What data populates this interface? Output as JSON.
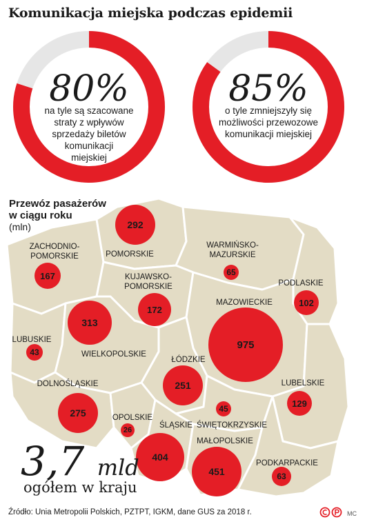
{
  "title": "Komunikacja miejska podczas epidemii",
  "accent_color": "#e41e26",
  "stats": [
    {
      "value": "80%",
      "fraction": 0.8,
      "lines": [
        "na tyle są szacowane",
        "straty z wpływów",
        "sprzedaży biletów",
        "komunikacji",
        "miejskiej"
      ]
    },
    {
      "value": "85%",
      "fraction": 0.85,
      "lines": [
        "o tyle zmniejszyły się",
        "możliwości przewozowe",
        "komunikacji miejskiej"
      ]
    }
  ],
  "legend": {
    "title_line1": "Przewóz pasażerów",
    "title_line2": "w ciągu roku",
    "unit": "(mln)"
  },
  "regions": [
    {
      "name": "ZACHODNIO-\nPOMORSKIE",
      "value": 167
    },
    {
      "name": "POMORSKIE",
      "value": 292
    },
    {
      "name": "WARMIŃSKO-\nMAZURSKIE",
      "value": 65
    },
    {
      "name": "PODLASKIE",
      "value": 102
    },
    {
      "name": "KUJAWSKO-\nPOMORSKIE",
      "value": 172
    },
    {
      "name": "MAZOWIECKIE",
      "value": 975
    },
    {
      "name": "WIELKOPOLSKIE",
      "value": 313
    },
    {
      "name": "LUBUSKIE",
      "value": 43
    },
    {
      "name": "ŁÓDZKIE",
      "value": 251
    },
    {
      "name": "LUBELSKIE",
      "value": 129
    },
    {
      "name": "DOLNOŚLĄSKIE",
      "value": 275
    },
    {
      "name": "OPOLSKIE",
      "value": 26
    },
    {
      "name": "ŚLĄSKIE",
      "value": 404
    },
    {
      "name": "ŚWIĘTOKRZYSKIE",
      "value": 45
    },
    {
      "name": "MAŁOPOLSKIE",
      "value": 451
    },
    {
      "name": "PODKARPACKIE",
      "value": 63
    }
  ],
  "total": {
    "value": "3,7",
    "unit": "mld",
    "caption": "ogółem w kraju"
  },
  "source": "Źródło: Unia Metropolii Polskich, PZTPT, IGKM, dane GUS za 2018 r.",
  "author": "MC"
}
